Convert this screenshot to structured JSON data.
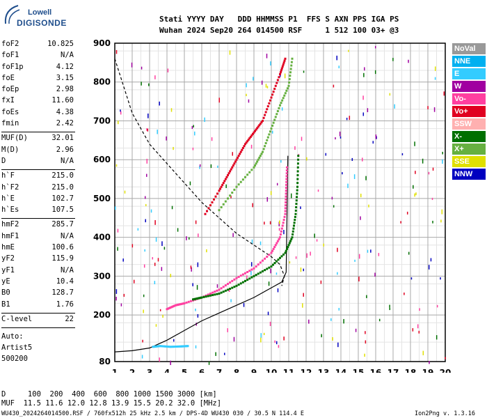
{
  "logo": {
    "line1": "Lowell",
    "line2": "DIGISONDE"
  },
  "header": {
    "line1": "Stati YYYY DAY   DDD HHMMSS P1  FFS S AXN PPS IGA PS",
    "line2": "Wuhan 2024 Sep20 264 014500 RSF     1 512 100 03+ @3"
  },
  "params_group1": [
    {
      "name": "foF2",
      "value": "10.825"
    },
    {
      "name": "foF1",
      "value": "N/A"
    },
    {
      "name": "foF1p",
      "value": "4.12"
    },
    {
      "name": "foE",
      "value": "3.15"
    },
    {
      "name": "foEp",
      "value": "2.98"
    },
    {
      "name": "fxI",
      "value": "11.60"
    },
    {
      "name": "foEs",
      "value": "4.38"
    },
    {
      "name": "fmin",
      "value": "2.42"
    }
  ],
  "params_group2": [
    {
      "name": "MUF(D)",
      "value": "32.01"
    },
    {
      "name": "M(D)",
      "value": "2.96"
    },
    {
      "name": "D",
      "value": "N/A"
    }
  ],
  "params_group3": [
    {
      "name": "h`F",
      "value": "215.0"
    },
    {
      "name": "h`F2",
      "value": "215.0"
    },
    {
      "name": "h`E",
      "value": "102.7"
    },
    {
      "name": "h`Es",
      "value": "107.5"
    }
  ],
  "params_group4": [
    {
      "name": "hmF2",
      "value": "285.7"
    },
    {
      "name": "hmF1",
      "value": "N/A"
    },
    {
      "name": "hmE",
      "value": "100.6"
    },
    {
      "name": "yF2",
      "value": "115.9"
    },
    {
      "name": "yF1",
      "value": "N/A"
    },
    {
      "name": "yE",
      "value": "10.4"
    },
    {
      "name": "B0",
      "value": "128.7"
    },
    {
      "name": "B1",
      "value": "1.76"
    }
  ],
  "params_group5": [
    {
      "name": "C-level",
      "value": "22"
    }
  ],
  "autoscale": {
    "line1": "Auto:",
    "line2": "Artist5",
    "line3": "500200"
  },
  "legend": [
    {
      "label": "NoVal",
      "color": "#999999"
    },
    {
      "label": "NNE",
      "color": "#00b0f0"
    },
    {
      "label": "E",
      "color": "#33ccff"
    },
    {
      "label": "W",
      "color": "#a000a0"
    },
    {
      "label": "Vo-",
      "color": "#ff40a0"
    },
    {
      "label": "Vo+",
      "color": "#e00020"
    },
    {
      "label": "SSW",
      "color": "#ffb0b0"
    },
    {
      "label": "X-",
      "color": "#007000"
    },
    {
      "label": "X+",
      "color": "#66b040"
    },
    {
      "label": "SSE",
      "color": "#e0e000"
    },
    {
      "label": "NNW",
      "color": "#0000c0"
    }
  ],
  "footer": {
    "d_row": "D     100  200  400  600  800 1000 1500 3000 [km]",
    "muf_row": "MUF  11.5 11.6 12.0 12.8 13.9 15.5 20.2 32.0 [MHz]",
    "info": "WU430_2024264014500.RSF / 760fx512h 25 kHz 2.5 km / DPS-4D WU430 030 / 30.5 N 114.4 E",
    "version": "Ion2Png v. 1.3.16"
  },
  "chart_data": {
    "type": "scatter",
    "xlim": [
      1,
      20
    ],
    "ylim": [
      80,
      900
    ],
    "x_ticks": [
      1,
      2,
      3,
      4,
      5,
      6,
      7,
      8,
      9,
      10,
      11,
      12,
      13,
      14,
      15,
      16,
      17,
      18,
      19,
      20
    ],
    "y_ticks": [
      80,
      200,
      300,
      400,
      500,
      600,
      700,
      800,
      900
    ],
    "x_minor_step": 0.5,
    "y_minor_step": 50,
    "grid": true,
    "series": [
      {
        "name": "Vo-",
        "color": "#ff40a0",
        "points": [
          [
            4,
            215
          ],
          [
            4.5,
            225
          ],
          [
            5,
            230
          ],
          [
            6,
            245
          ],
          [
            7,
            265
          ],
          [
            8,
            295
          ],
          [
            9,
            320
          ],
          [
            10,
            360
          ],
          [
            10.5,
            400
          ],
          [
            10.8,
            460
          ],
          [
            10.85,
            520
          ],
          [
            10.9,
            580
          ]
        ]
      },
      {
        "name": "Vo+",
        "color": "#e00020",
        "points": [
          [
            6.2,
            460
          ],
          [
            7,
            520
          ],
          [
            7.5,
            560
          ],
          [
            8,
            600
          ],
          [
            8.5,
            640
          ],
          [
            9,
            670
          ],
          [
            9.5,
            700
          ],
          [
            10,
            760
          ],
          [
            10.5,
            820
          ],
          [
            10.8,
            860
          ]
        ]
      },
      {
        "name": "X-",
        "color": "#007000",
        "points": [
          [
            5.5,
            240
          ],
          [
            6,
            245
          ],
          [
            7,
            255
          ],
          [
            8,
            275
          ],
          [
            9,
            300
          ],
          [
            10,
            325
          ],
          [
            10.8,
            360
          ],
          [
            11.2,
            400
          ],
          [
            11.4,
            460
          ],
          [
            11.5,
            530
          ],
          [
            11.55,
            610
          ]
        ]
      },
      {
        "name": "X+",
        "color": "#66b040",
        "points": [
          [
            7,
            470
          ],
          [
            8,
            530
          ],
          [
            9,
            580
          ],
          [
            9.5,
            620
          ],
          [
            10,
            680
          ],
          [
            10.5,
            740
          ],
          [
            11,
            790
          ],
          [
            11.2,
            860
          ]
        ]
      },
      {
        "name": "E",
        "color": "#33ccff",
        "points": [
          [
            3.2,
            118
          ],
          [
            3.6,
            120
          ],
          [
            4.2,
            118
          ],
          [
            4.8,
            119
          ],
          [
            5.2,
            120
          ]
        ]
      }
    ],
    "profile_solid": [
      [
        1,
        105
      ],
      [
        2,
        108
      ],
      [
        3,
        115
      ],
      [
        4,
        135
      ],
      [
        5,
        160
      ],
      [
        6,
        185
      ],
      [
        7,
        205
      ],
      [
        8,
        225
      ],
      [
        9,
        245
      ],
      [
        10,
        270
      ],
      [
        10.6,
        285
      ],
      [
        10.85,
        310
      ],
      [
        10.9,
        450
      ],
      [
        10.95,
        610
      ]
    ],
    "profile_dashed": [
      [
        1,
        860
      ],
      [
        2,
        720
      ],
      [
        3,
        640
      ],
      [
        4,
        590
      ],
      [
        5,
        540
      ],
      [
        6,
        490
      ],
      [
        7,
        450
      ],
      [
        8,
        410
      ],
      [
        9,
        380
      ],
      [
        10,
        350
      ],
      [
        10.5,
        330
      ],
      [
        10.75,
        300
      ],
      [
        10.6,
        275
      ]
    ]
  }
}
